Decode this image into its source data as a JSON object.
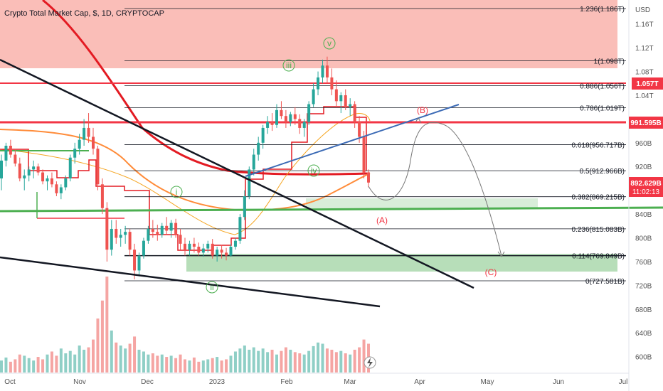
{
  "header": {
    "title": "Crypto Total Market Cap, $, 1D, CRYPTOCAP"
  },
  "axis": {
    "currency": "USD",
    "y_ticks": [
      "1.16T",
      "1.12T",
      "1.08T",
      "1.04T",
      "960B",
      "920B",
      "840B",
      "800B",
      "760B",
      "720B",
      "680B",
      "640B",
      "600B"
    ],
    "x_ticks": [
      "Oct",
      "Nov",
      "Dec",
      "2023",
      "Feb",
      "Mar",
      "Apr",
      "May",
      "Jun",
      "Jul"
    ]
  },
  "price_tags": {
    "level_1057": {
      "label": "1.057T",
      "color": "#f23645"
    },
    "level_991": {
      "label": "991.595B",
      "color": "#f23645"
    },
    "current": {
      "label": "892.629B",
      "sublabel": "11:02:13",
      "color": "#f23645"
    }
  },
  "chart_data": {
    "type": "line",
    "title": "Crypto Total Market Cap, $, 1D, CRYPTOCAP",
    "yaxis": {
      "unit": "USD",
      "range": [
        580,
        1190
      ]
    },
    "fib_levels": [
      {
        "label": "1.236(1.186T)",
        "value": 1186
      },
      {
        "label": "1(1.098T)",
        "value": 1098
      },
      {
        "label": "0.886(1.056T)",
        "value": 1056
      },
      {
        "label": "0.786(1.019T)",
        "value": 1019
      },
      {
        "label": "0.618(956.717B)",
        "value": 956.717
      },
      {
        "label": "0.5(912.966B)",
        "value": 912.966
      },
      {
        "label": "0.382(869.215B)",
        "value": 869.215
      },
      {
        "label": "0.236(815.083B)",
        "value": 815.083
      },
      {
        "label": "0.114(769.849B)",
        "value": 769.849
      },
      {
        "label": "0(727.581B)",
        "value": 727.581
      }
    ],
    "horizontal_levels": [
      {
        "value": 1057,
        "color": "#f23645"
      },
      {
        "value": 991.595,
        "color": "#f23645"
      },
      {
        "value": 853,
        "color": "#4caf50"
      }
    ],
    "wave_labels": [
      {
        "text": "i",
        "color": "#4caf50"
      },
      {
        "text": "ii",
        "color": "#4caf50"
      },
      {
        "text": "iii",
        "color": "#4caf50"
      },
      {
        "text": "iv",
        "color": "#4caf50"
      },
      {
        "text": "v",
        "color": "#4caf50"
      },
      {
        "text": "(A)",
        "color": "#f23645"
      },
      {
        "text": "(B)",
        "color": "#f23645"
      },
      {
        "text": "(C)",
        "color": "#f23645"
      }
    ],
    "price_candles": [
      [
        900,
        940,
        880,
        930
      ],
      [
        930,
        960,
        920,
        955
      ],
      [
        955,
        965,
        935,
        940
      ],
      [
        940,
        950,
        920,
        925
      ],
      [
        925,
        935,
        895,
        900
      ],
      [
        900,
        915,
        880,
        905
      ],
      [
        905,
        920,
        895,
        915
      ],
      [
        915,
        930,
        900,
        920
      ],
      [
        920,
        925,
        905,
        910
      ],
      [
        910,
        915,
        890,
        895
      ],
      [
        895,
        905,
        880,
        900
      ],
      [
        900,
        910,
        885,
        890
      ],
      [
        890,
        895,
        870,
        875
      ],
      [
        875,
        890,
        865,
        885
      ],
      [
        885,
        905,
        880,
        900
      ],
      [
        900,
        940,
        895,
        935
      ],
      [
        935,
        960,
        925,
        950
      ],
      [
        950,
        975,
        940,
        965
      ],
      [
        965,
        1000,
        955,
        985
      ],
      [
        985,
        1010,
        960,
        970
      ],
      [
        970,
        985,
        940,
        950
      ],
      [
        950,
        955,
        880,
        890
      ],
      [
        890,
        900,
        840,
        850
      ],
      [
        850,
        860,
        760,
        780
      ],
      [
        780,
        830,
        770,
        815
      ],
      [
        815,
        830,
        790,
        800
      ],
      [
        800,
        815,
        785,
        805
      ],
      [
        805,
        820,
        790,
        810
      ],
      [
        810,
        815,
        770,
        780
      ],
      [
        780,
        790,
        730,
        745
      ],
      [
        745,
        775,
        735,
        770
      ],
      [
        770,
        800,
        765,
        795
      ],
      [
        795,
        820,
        790,
        815
      ],
      [
        815,
        830,
        800,
        810
      ],
      [
        810,
        822,
        795,
        805
      ],
      [
        805,
        825,
        800,
        820
      ],
      [
        820,
        835,
        805,
        812
      ],
      [
        812,
        830,
        800,
        825
      ],
      [
        825,
        832,
        800,
        805
      ],
      [
        805,
        815,
        780,
        790
      ],
      [
        790,
        800,
        770,
        780
      ],
      [
        780,
        795,
        770,
        790
      ],
      [
        790,
        800,
        775,
        785
      ],
      [
        785,
        792,
        770,
        775
      ],
      [
        775,
        790,
        768,
        782
      ],
      [
        782,
        795,
        775,
        790
      ],
      [
        790,
        798,
        765,
        770
      ],
      [
        770,
        785,
        760,
        780
      ],
      [
        780,
        788,
        765,
        775
      ],
      [
        775,
        783,
        762,
        770
      ],
      [
        770,
        790,
        768,
        785
      ],
      [
        785,
        800,
        780,
        795
      ],
      [
        795,
        840,
        790,
        835
      ],
      [
        835,
        880,
        830,
        870
      ],
      [
        870,
        920,
        865,
        915
      ],
      [
        915,
        950,
        905,
        940
      ],
      [
        940,
        970,
        930,
        960
      ],
      [
        960,
        990,
        950,
        985
      ],
      [
        985,
        1005,
        975,
        995
      ],
      [
        995,
        1010,
        980,
        990
      ],
      [
        990,
        1025,
        985,
        1015
      ],
      [
        1015,
        1030,
        1000,
        1005
      ],
      [
        1005,
        1015,
        985,
        995
      ],
      [
        995,
        1012,
        988,
        1008
      ],
      [
        1008,
        1020,
        990,
        1000
      ],
      [
        1000,
        1008,
        975,
        985
      ],
      [
        985,
        1000,
        970,
        995
      ],
      [
        995,
        1030,
        990,
        1025
      ],
      [
        1025,
        1060,
        1020,
        1050
      ],
      [
        1050,
        1080,
        1040,
        1070
      ],
      [
        1070,
        1100,
        1060,
        1090
      ],
      [
        1090,
        1105,
        1060,
        1070
      ],
      [
        1070,
        1085,
        1040,
        1050
      ],
      [
        1050,
        1065,
        1020,
        1030
      ],
      [
        1030,
        1045,
        1010,
        1040
      ],
      [
        1040,
        1050,
        1015,
        1020
      ],
      [
        1020,
        1035,
        1005,
        1025
      ],
      [
        1025,
        1030,
        985,
        995
      ],
      [
        995,
        1005,
        960,
        970
      ],
      [
        970,
        980,
        900,
        910
      ],
      [
        910,
        915,
        885,
        893
      ]
    ],
    "volume": [
      20,
      25,
      18,
      22,
      30,
      28,
      24,
      20,
      26,
      22,
      30,
      35,
      28,
      40,
      32,
      36,
      30,
      45,
      38,
      42,
      55,
      90,
      120,
      160,
      70,
      50,
      45,
      40,
      48,
      60,
      38,
      35,
      30,
      32,
      28,
      30,
      26,
      28,
      24,
      30,
      22,
      20,
      25,
      18,
      20,
      22,
      24,
      26,
      20,
      22,
      28,
      35,
      40,
      45,
      38,
      42,
      36,
      40,
      34,
      38,
      30,
      36,
      42,
      38,
      34,
      32,
      30,
      36,
      44,
      50,
      48,
      40,
      38,
      34,
      36,
      32,
      30,
      38,
      42,
      55,
      48
    ]
  }
}
